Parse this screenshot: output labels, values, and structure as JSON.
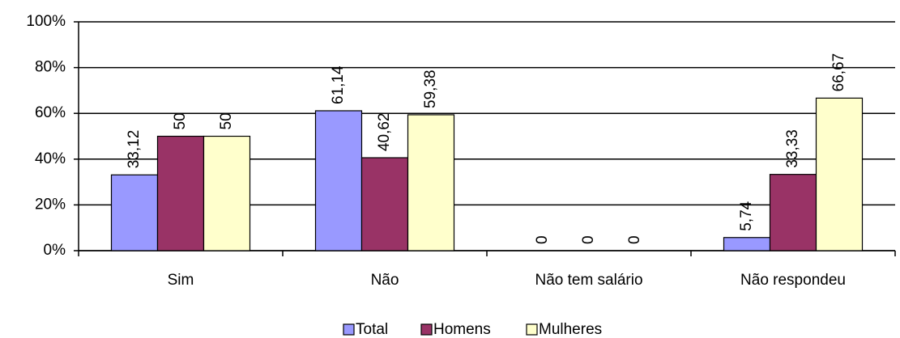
{
  "chart_data": {
    "type": "bar",
    "categories": [
      "Sim",
      "Não",
      "Não tem salário",
      "Não respondeu"
    ],
    "series": [
      {
        "name": "Total",
        "color": "#9999ff",
        "values": [
          33.12,
          61.14,
          0,
          5.74
        ],
        "value_labels": [
          "33,12",
          "61,14",
          "0",
          "5,74"
        ]
      },
      {
        "name": "Homens",
        "color": "#993366",
        "values": [
          50,
          40.62,
          0,
          33.33
        ],
        "value_labels": [
          "50",
          "40,62",
          "0",
          "33,33"
        ]
      },
      {
        "name": "Mulheres",
        "color": "#ffffcc",
        "values": [
          50,
          59.38,
          0,
          66.67
        ],
        "value_labels": [
          "50",
          "59,38",
          "0",
          "66,67"
        ]
      }
    ],
    "ylim": [
      0,
      100
    ],
    "yticks": [
      {
        "value": 0,
        "label": "0%"
      },
      {
        "value": 20,
        "label": "20%"
      },
      {
        "value": 40,
        "label": "40%"
      },
      {
        "value": 60,
        "label": "60%"
      },
      {
        "value": 80,
        "label": "80%"
      },
      {
        "value": 100,
        "label": "100%"
      }
    ],
    "grid": true,
    "legend": "bottom"
  }
}
